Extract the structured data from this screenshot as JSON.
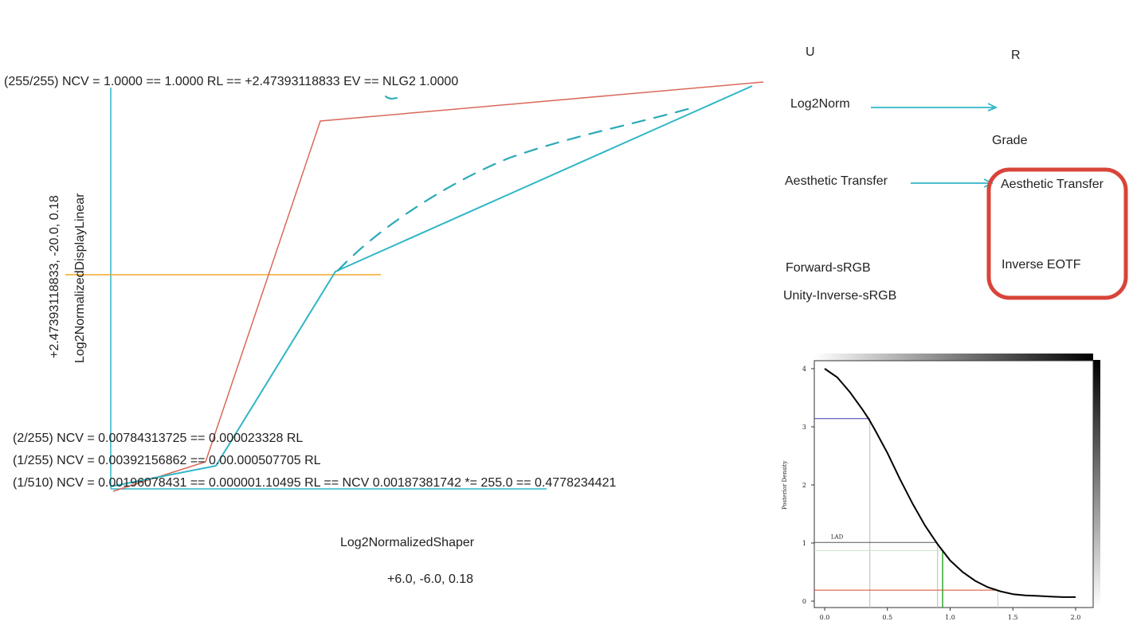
{
  "main_diagram": {
    "top_annotation": "(255/255) NCV = 1.0000 == 1.0000 RL == +2.47393118833 EV == NLG2 1.0000",
    "y_axis_label_1": "+2.47393118833, -20.0, 0.18",
    "y_axis_label_2": "Log2NormalizedDisplayLinear",
    "bottom_annotations": [
      "(2/255) NCV = 0.00784313725 == 0.000023328 RL",
      "(1/255) NCV = 0.00392156862 == 0.00.000507705 RL",
      "(1/510) NCV = 0.00196078431 == 0.000001.10495 RL == NCV 0.00187381742 *= 255.0 == 0.4778234421"
    ],
    "x_axis_label_1": "Log2NormalizedShaper",
    "x_axis_label_2": "+6.0, -6.0, 0.18",
    "colors": {
      "red_curve": "#d9695a",
      "teal_curve": "#2fb6c6",
      "orange_line": "#f2a72a"
    }
  },
  "pipeline": {
    "col_u": "U",
    "col_r": "R",
    "log2norm": "Log2Norm",
    "grade": "Grade",
    "aesthetic_transfer_left": "Aesthetic Transfer",
    "aesthetic_transfer_right": "Aesthetic Transfer",
    "inverse_eotf": "Inverse EOTF",
    "forward_srgb": "Forward-sRGB",
    "unity_inverse_srgb": "Unity-Inverse-sRGB",
    "colors": {
      "arrow": "#2fb6c6",
      "highlight_box": "#d8443a"
    }
  },
  "inset_chart": {
    "ylabel": "Posterior Density",
    "annotation": "LAD",
    "x_ticks": [
      "0.0",
      "0.5",
      "1.0",
      "1.5",
      "2.0"
    ],
    "y_ticks": [
      "0",
      "1",
      "2",
      "3",
      "4"
    ]
  },
  "chart_data": {
    "type": "line",
    "title": "",
    "xlabel": "",
    "ylabel": "Posterior Density",
    "xlim": [
      -0.1,
      2.1
    ],
    "ylim": [
      -0.15,
      4.1
    ],
    "x_ticks": [
      0.0,
      0.5,
      1.0,
      1.5,
      2.0
    ],
    "y_ticks": [
      0,
      1,
      2,
      3,
      4
    ],
    "series": [
      {
        "x": [
          0.0,
          0.1,
          0.2,
          0.3,
          0.35,
          0.4,
          0.5,
          0.6,
          0.7,
          0.8,
          0.9,
          1.0,
          1.1,
          1.2,
          1.3,
          1.4,
          1.5,
          1.6,
          1.7,
          1.8,
          1.9,
          2.0
        ],
        "y": [
          4.0,
          3.85,
          3.6,
          3.3,
          3.14,
          2.95,
          2.55,
          2.1,
          1.68,
          1.3,
          0.98,
          0.7,
          0.5,
          0.35,
          0.24,
          0.17,
          0.12,
          0.1,
          0.09,
          0.08,
          0.07,
          0.07
        ]
      }
    ],
    "reference_lines": [
      {
        "kind": "h",
        "y": 3.14,
        "x_end": 0.36,
        "color": "#3a3ab0"
      },
      {
        "kind": "v",
        "x": 0.36,
        "y_end": 3.14,
        "color": "#bbbbbb"
      },
      {
        "kind": "h",
        "y": 1.01,
        "x_end": 0.9,
        "color": "#555555"
      },
      {
        "kind": "v",
        "x": 0.9,
        "y_end": 1.01,
        "color": "#bbbbbb"
      },
      {
        "kind": "h",
        "y": 0.87,
        "x_end": 0.94,
        "color": "#c9e6c9"
      },
      {
        "kind": "v",
        "x": 0.94,
        "y_end": 0.87,
        "color": "#2fa82f"
      },
      {
        "kind": "h",
        "y": 0.19,
        "x_end": 1.38,
        "color": "#d24a2a"
      },
      {
        "kind": "v",
        "x": 1.38,
        "y_end": 0.19,
        "color": "#cccccc"
      }
    ],
    "annotations": [
      {
        "text": "LAD",
        "x": 0.05,
        "y": 1.05
      }
    ]
  }
}
